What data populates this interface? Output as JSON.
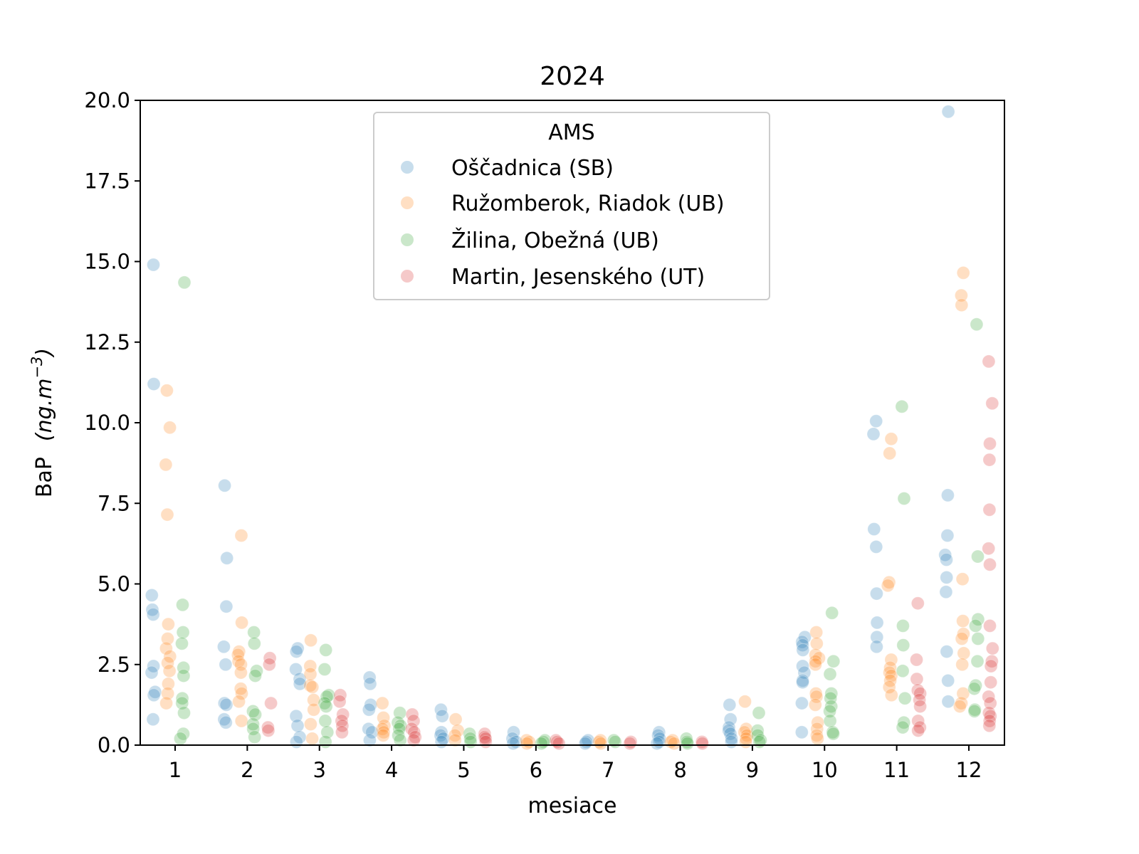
{
  "chart_data": {
    "type": "scatter",
    "subtype": "strip",
    "title": "2024",
    "xlabel": "mesiace",
    "ylabel": {
      "text": "BaP",
      "unit": "ng.m",
      "exponent": "−3"
    },
    "ylim": [
      0,
      20
    ],
    "yticks": [
      "0.0",
      "2.5",
      "5.0",
      "7.5",
      "10.0",
      "12.5",
      "15.0",
      "17.5",
      "20.0"
    ],
    "ytick_values": [
      0,
      2.5,
      5,
      7.5,
      10,
      12.5,
      15,
      17.5,
      20
    ],
    "categories": [
      "1",
      "2",
      "3",
      "4",
      "5",
      "6",
      "7",
      "8",
      "9",
      "10",
      "11",
      "12"
    ],
    "grid": false,
    "legend": {
      "title": "AMS",
      "placement": "top-center"
    },
    "marker_alpha": 0.25,
    "series": [
      {
        "name": "Oščadnica (SB)",
        "color": "#1f77b4",
        "values": {
          "1": [
            14.9,
            11.2,
            4.65,
            4.2,
            4.05,
            2.45,
            2.25,
            1.65,
            1.55,
            0.8
          ],
          "2": [
            8.05,
            5.8,
            4.3,
            3.05,
            2.5,
            1.3,
            1.25,
            0.8,
            0.7
          ],
          "3": [
            3.0,
            2.9,
            2.35,
            2.05,
            1.9,
            0.9,
            0.6,
            0.25,
            0.1
          ],
          "4": [
            2.1,
            1.9,
            1.25,
            1.1,
            0.5,
            0.4,
            0.15
          ],
          "5": [
            1.1,
            0.9,
            0.4,
            0.3,
            0.2,
            0.1
          ],
          "6": [
            0.4,
            0.2,
            0.1,
            0.05
          ],
          "7": [
            0.15,
            0.1,
            0.05
          ],
          "8": [
            0.4,
            0.3,
            0.2,
            0.1,
            0.05
          ],
          "9": [
            1.25,
            0.8,
            0.55,
            0.45,
            0.35,
            0.2,
            0.1
          ],
          "10": [
            3.35,
            3.2,
            3.1,
            2.95,
            2.45,
            2.25,
            2.0,
            1.95,
            1.3,
            0.4
          ],
          "11": [
            10.05,
            9.65,
            6.7,
            6.15,
            4.7,
            3.8,
            3.35,
            3.05
          ],
          "12": [
            19.65,
            7.75,
            6.5,
            5.9,
            5.75,
            5.2,
            4.75,
            2.9,
            2.0,
            1.35
          ]
        }
      },
      {
        "name": "Ružomberok, Riadok (UB)",
        "color": "#ff7f0e",
        "values": {
          "1": [
            11.0,
            9.85,
            8.7,
            7.15,
            3.75,
            3.3,
            3.0,
            2.75,
            2.55,
            2.3,
            1.9,
            1.6,
            1.3
          ],
          "2": [
            6.5,
            3.8,
            2.9,
            2.8,
            2.6,
            2.5,
            2.25,
            1.75,
            1.6,
            1.35,
            0.75
          ],
          "3": [
            3.25,
            2.45,
            2.2,
            1.85,
            1.8,
            1.4,
            1.1,
            0.65,
            0.2
          ],
          "4": [
            1.3,
            0.85,
            0.6,
            0.5,
            0.4,
            0.3
          ],
          "5": [
            0.8,
            0.45,
            0.3,
            0.15
          ],
          "6": [
            0.15,
            0.1,
            0.05
          ],
          "7": [
            0.15,
            0.1,
            0.05
          ],
          "8": [
            0.15,
            0.1,
            0.05
          ],
          "9": [
            1.35,
            0.5,
            0.4,
            0.3,
            0.2,
            0.1
          ],
          "10": [
            3.5,
            3.15,
            2.8,
            2.7,
            2.6,
            2.5,
            1.6,
            1.5,
            1.25,
            0.7,
            0.5,
            0.3,
            0.2
          ],
          "11": [
            9.5,
            9.05,
            5.05,
            4.95,
            2.65,
            2.4,
            2.25,
            2.15,
            2.0,
            1.8,
            1.55
          ],
          "12": [
            14.65,
            13.95,
            13.65,
            5.15,
            3.85,
            3.45,
            3.3,
            2.85,
            2.5,
            1.6,
            1.3,
            1.2
          ]
        }
      },
      {
        "name": "Žilina, Obežná (UB)",
        "color": "#2ca02c",
        "values": {
          "1": [
            14.35,
            4.35,
            3.5,
            3.15,
            2.4,
            2.15,
            1.45,
            1.3,
            1.0,
            0.35,
            0.2
          ],
          "2": [
            3.5,
            3.15,
            2.3,
            2.15,
            1.05,
            0.95,
            0.65,
            0.5,
            0.25
          ],
          "3": [
            2.95,
            2.35,
            1.55,
            1.5,
            1.3,
            1.2,
            0.75,
            0.4,
            0.1
          ],
          "4": [
            1.0,
            0.7,
            0.6,
            0.5,
            0.3,
            0.15
          ],
          "5": [
            0.35,
            0.2,
            0.1
          ],
          "6": [
            0.15,
            0.1,
            0.05
          ],
          "7": [
            0.15,
            0.1
          ],
          "8": [
            0.2,
            0.1,
            0.05
          ],
          "9": [
            1.0,
            0.45,
            0.3,
            0.15,
            0.1
          ],
          "10": [
            4.1,
            2.6,
            2.2,
            1.6,
            1.45,
            1.2,
            1.05,
            0.75,
            0.4,
            0.35
          ],
          "11": [
            10.5,
            7.65,
            3.7,
            3.1,
            2.3,
            1.45,
            0.7,
            0.55
          ],
          "12": [
            13.05,
            5.85,
            3.9,
            3.7,
            3.3,
            2.6,
            1.85,
            1.75,
            1.1,
            1.05
          ]
        }
      },
      {
        "name": "Martin, Jesenského (UT)",
        "color": "#d62728",
        "values": {
          "1": [],
          "2": [
            2.7,
            2.5,
            1.3,
            0.55,
            0.45
          ],
          "3": [
            1.55,
            1.35,
            0.95,
            0.75,
            0.6,
            0.4
          ],
          "4": [
            0.95,
            0.75,
            0.5,
            0.4,
            0.25,
            0.15
          ],
          "5": [
            0.35,
            0.25,
            0.2,
            0.1
          ],
          "6": [
            0.15,
            0.1,
            0.05
          ],
          "7": [
            0.1,
            0.05
          ],
          "8": [
            0.1,
            0.05
          ],
          "9": [],
          "10": [],
          "11": [
            4.4,
            2.65,
            2.05,
            1.7,
            1.6,
            1.4,
            1.2,
            0.75,
            0.55,
            0.45
          ],
          "12": [
            11.9,
            10.6,
            9.35,
            8.85,
            7.3,
            6.1,
            5.6,
            3.7,
            3.0,
            2.6,
            2.45,
            1.95,
            1.5,
            1.3,
            1.0,
            0.9,
            0.75,
            0.6
          ]
        }
      }
    ]
  }
}
